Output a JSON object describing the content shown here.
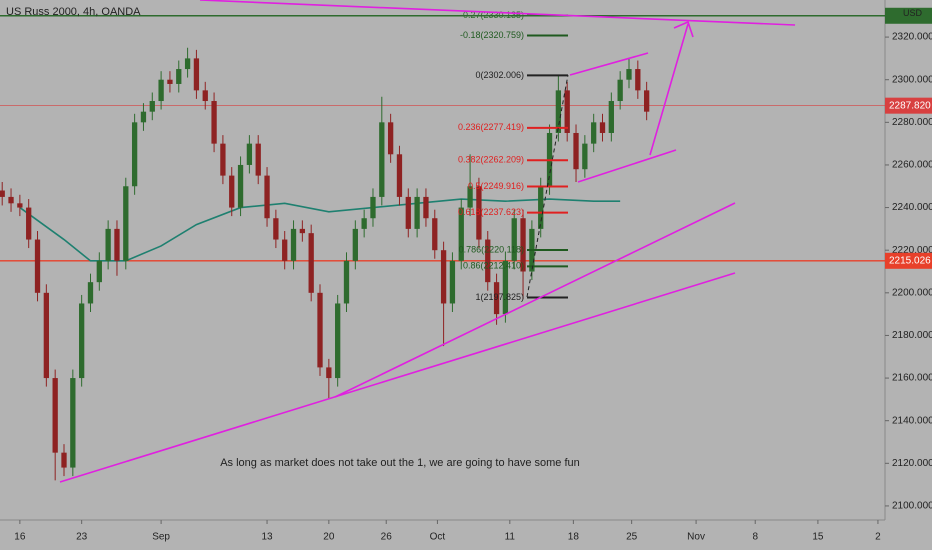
{
  "chart_data": {
    "type": "candlestick",
    "title": "US Russ 2000, 4h, OANDA",
    "annotation": "As long as market does not take out the 1, we are going to have some fun",
    "currency": "USD",
    "up_color": "#2e6b2e",
    "down_color": "#8e2222",
    "xlim": [
      -2.25,
      98
    ],
    "xticks": [
      {
        "value": 0,
        "label": "16"
      },
      {
        "value": 7,
        "label": "23"
      },
      {
        "value": 16,
        "label": "Sep"
      },
      {
        "value": 28,
        "label": "13"
      },
      {
        "value": 35,
        "label": "20"
      },
      {
        "value": 41.5,
        "label": "26"
      },
      {
        "value": 47.3,
        "label": "Oct"
      },
      {
        "value": 55.5,
        "label": "11"
      },
      {
        "value": 62.7,
        "label": "18"
      },
      {
        "value": 69.3,
        "label": "25"
      },
      {
        "value": 76.6,
        "label": "Nov"
      },
      {
        "value": 83.3,
        "label": "8"
      },
      {
        "value": 90.4,
        "label": "15"
      },
      {
        "value": 97.2,
        "label": "2"
      }
    ],
    "ylim": [
      2093.4,
      2337.4
    ],
    "yticks": [
      {
        "value": 2100,
        "label": "2100.000"
      },
      {
        "value": 2120,
        "label": "2120.000"
      },
      {
        "value": 2140,
        "label": "2140.000"
      },
      {
        "value": 2160,
        "label": "2160.000"
      },
      {
        "value": 2180,
        "label": "2180.000"
      },
      {
        "value": 2200,
        "label": "2200.000"
      },
      {
        "value": 2220,
        "label": "2220.000"
      },
      {
        "value": 2240,
        "label": "2240.000"
      },
      {
        "value": 2260,
        "label": "2260.000"
      },
      {
        "value": 2280,
        "label": "2280.000"
      },
      {
        "value": 2300,
        "label": "2300.000"
      },
      {
        "value": 2320,
        "label": "2320.000"
      }
    ],
    "price_lines": [
      {
        "value": 2287.82,
        "label": "2287.820",
        "color": "#d84040"
      },
      {
        "value": 2215.026,
        "label": "2215.026",
        "color": "#e8402a"
      }
    ],
    "top_line": {
      "value": 2330,
      "color": "#2e6b2e"
    },
    "fib_levels": [
      {
        "value": 2330.135,
        "label": "-0.27(2330.135)",
        "color": "#2e6b2e"
      },
      {
        "value": 2320.759,
        "label": "-0.18(2320.759)",
        "color": "#1f5a1f"
      },
      {
        "value": 2302.006,
        "label": "0(2302.006)",
        "color": "#222222"
      },
      {
        "value": 2277.419,
        "label": "0.236(2277.419)",
        "color": "#e02020"
      },
      {
        "value": 2262.209,
        "label": "0.382(2262.209)",
        "color": "#e02020"
      },
      {
        "value": 2249.916,
        "label": "0.5(2249.916)",
        "color": "#e02020"
      },
      {
        "value": 2237.623,
        "label": "0.618(2237.623)",
        "color": "#e02020"
      },
      {
        "value": 2220.118,
        "label": "0.786(2220.118)",
        "color": "#1f5a1f"
      },
      {
        "value": 2212.41,
        "label": "0.86(2212.410)",
        "color": "#1f5a1f"
      },
      {
        "value": 2197.825,
        "label": "1(2197.825)",
        "color": "#222222"
      }
    ],
    "ma": {
      "color": "#1e8070",
      "x": [
        0,
        5,
        8,
        12,
        16,
        20,
        25,
        30,
        35,
        40,
        45,
        50,
        55,
        60,
        65,
        68
      ],
      "values": [
        2240,
        2225,
        2215,
        2215,
        2222,
        2232,
        2240,
        2242,
        2238,
        2240,
        2242,
        2244,
        2243,
        2244,
        2243,
        2243
      ]
    },
    "candles": [
      {
        "x": -2,
        "o": 2248,
        "h": 2252,
        "l": 2241,
        "c": 2245
      },
      {
        "x": -1,
        "o": 2245,
        "h": 2249,
        "l": 2238,
        "c": 2242
      },
      {
        "x": 0,
        "o": 2242,
        "h": 2246,
        "l": 2236,
        "c": 2240
      },
      {
        "x": 1,
        "o": 2240,
        "h": 2244,
        "l": 2221,
        "c": 2225
      },
      {
        "x": 2,
        "o": 2225,
        "h": 2229,
        "l": 2196,
        "c": 2200
      },
      {
        "x": 3,
        "o": 2200,
        "h": 2204,
        "l": 2156,
        "c": 2160
      },
      {
        "x": 4,
        "o": 2160,
        "h": 2164,
        "l": 2112,
        "c": 2125
      },
      {
        "x": 5,
        "o": 2125,
        "h": 2129,
        "l": 2114,
        "c": 2118
      },
      {
        "x": 6,
        "o": 2118,
        "h": 2164,
        "l": 2114,
        "c": 2160
      },
      {
        "x": 7,
        "o": 2160,
        "h": 2199,
        "l": 2156,
        "c": 2195
      },
      {
        "x": 8,
        "o": 2195,
        "h": 2209,
        "l": 2191,
        "c": 2205
      },
      {
        "x": 9,
        "o": 2205,
        "h": 2219,
        "l": 2201,
        "c": 2215
      },
      {
        "x": 10,
        "o": 2215,
        "h": 2234,
        "l": 2211,
        "c": 2230
      },
      {
        "x": 11,
        "o": 2230,
        "h": 2234,
        "l": 2208,
        "c": 2215
      },
      {
        "x": 12,
        "o": 2215,
        "h": 2254,
        "l": 2211,
        "c": 2250
      },
      {
        "x": 13,
        "o": 2250,
        "h": 2284,
        "l": 2246,
        "c": 2280
      },
      {
        "x": 14,
        "o": 2280,
        "h": 2289,
        "l": 2276,
        "c": 2285
      },
      {
        "x": 15,
        "o": 2285,
        "h": 2294,
        "l": 2281,
        "c": 2290
      },
      {
        "x": 16,
        "o": 2290,
        "h": 2304,
        "l": 2286,
        "c": 2300
      },
      {
        "x": 17,
        "o": 2300,
        "h": 2304,
        "l": 2294,
        "c": 2298
      },
      {
        "x": 18,
        "o": 2298,
        "h": 2309,
        "l": 2294,
        "c": 2305
      },
      {
        "x": 19,
        "o": 2305,
        "h": 2315,
        "l": 2301,
        "c": 2310
      },
      {
        "x": 20,
        "o": 2310,
        "h": 2314,
        "l": 2291,
        "c": 2295
      },
      {
        "x": 21,
        "o": 2295,
        "h": 2299,
        "l": 2286,
        "c": 2290
      },
      {
        "x": 22,
        "o": 2290,
        "h": 2294,
        "l": 2266,
        "c": 2270
      },
      {
        "x": 23,
        "o": 2270,
        "h": 2274,
        "l": 2251,
        "c": 2255
      },
      {
        "x": 24,
        "o": 2255,
        "h": 2259,
        "l": 2236,
        "c": 2240
      },
      {
        "x": 25,
        "o": 2240,
        "h": 2264,
        "l": 2236,
        "c": 2260
      },
      {
        "x": 26,
        "o": 2260,
        "h": 2274,
        "l": 2256,
        "c": 2270
      },
      {
        "x": 27,
        "o": 2270,
        "h": 2274,
        "l": 2251,
        "c": 2255
      },
      {
        "x": 28,
        "o": 2255,
        "h": 2259,
        "l": 2231,
        "c": 2235
      },
      {
        "x": 29,
        "o": 2235,
        "h": 2239,
        "l": 2221,
        "c": 2225
      },
      {
        "x": 30,
        "o": 2225,
        "h": 2229,
        "l": 2211,
        "c": 2215
      },
      {
        "x": 31,
        "o": 2215,
        "h": 2234,
        "l": 2211,
        "c": 2230
      },
      {
        "x": 32,
        "o": 2230,
        "h": 2234,
        "l": 2224,
        "c": 2228
      },
      {
        "x": 33,
        "o": 2228,
        "h": 2232,
        "l": 2196,
        "c": 2200
      },
      {
        "x": 34,
        "o": 2200,
        "h": 2204,
        "l": 2161,
        "c": 2165
      },
      {
        "x": 35,
        "o": 2165,
        "h": 2169,
        "l": 2150,
        "c": 2160
      },
      {
        "x": 36,
        "o": 2160,
        "h": 2199,
        "l": 2156,
        "c": 2195
      },
      {
        "x": 37,
        "o": 2195,
        "h": 2219,
        "l": 2191,
        "c": 2215
      },
      {
        "x": 38,
        "o": 2215,
        "h": 2234,
        "l": 2211,
        "c": 2230
      },
      {
        "x": 39,
        "o": 2230,
        "h": 2239,
        "l": 2226,
        "c": 2235
      },
      {
        "x": 40,
        "o": 2235,
        "h": 2249,
        "l": 2231,
        "c": 2245
      },
      {
        "x": 41,
        "o": 2245,
        "h": 2292,
        "l": 2241,
        "c": 2280
      },
      {
        "x": 42,
        "o": 2280,
        "h": 2284,
        "l": 2261,
        "c": 2265
      },
      {
        "x": 43,
        "o": 2265,
        "h": 2269,
        "l": 2241,
        "c": 2245
      },
      {
        "x": 44,
        "o": 2245,
        "h": 2249,
        "l": 2226,
        "c": 2230
      },
      {
        "x": 45,
        "o": 2230,
        "h": 2249,
        "l": 2226,
        "c": 2245
      },
      {
        "x": 46,
        "o": 2245,
        "h": 2249,
        "l": 2231,
        "c": 2235
      },
      {
        "x": 47,
        "o": 2235,
        "h": 2239,
        "l": 2216,
        "c": 2220
      },
      {
        "x": 48,
        "o": 2220,
        "h": 2224,
        "l": 2175,
        "c": 2195
      },
      {
        "x": 49,
        "o": 2195,
        "h": 2219,
        "l": 2191,
        "c": 2215
      },
      {
        "x": 50,
        "o": 2215,
        "h": 2244,
        "l": 2211,
        "c": 2240
      },
      {
        "x": 51,
        "o": 2240,
        "h": 2265,
        "l": 2236,
        "c": 2250
      },
      {
        "x": 52,
        "o": 2250,
        "h": 2254,
        "l": 2221,
        "c": 2225
      },
      {
        "x": 53,
        "o": 2225,
        "h": 2229,
        "l": 2201,
        "c": 2205
      },
      {
        "x": 54,
        "o": 2205,
        "h": 2209,
        "l": 2185,
        "c": 2190
      },
      {
        "x": 55,
        "o": 2190,
        "h": 2219,
        "l": 2186,
        "c": 2215
      },
      {
        "x": 56,
        "o": 2215,
        "h": 2239,
        "l": 2211,
        "c": 2235
      },
      {
        "x": 57,
        "o": 2235,
        "h": 2239,
        "l": 2197,
        "c": 2210
      },
      {
        "x": 58,
        "o": 2210,
        "h": 2234,
        "l": 2206,
        "c": 2230
      },
      {
        "x": 59,
        "o": 2230,
        "h": 2254,
        "l": 2226,
        "c": 2250
      },
      {
        "x": 60,
        "o": 2250,
        "h": 2279,
        "l": 2246,
        "c": 2275
      },
      {
        "x": 61,
        "o": 2275,
        "h": 2302,
        "l": 2271,
        "c": 2295
      },
      {
        "x": 62,
        "o": 2295,
        "h": 2299,
        "l": 2271,
        "c": 2275
      },
      {
        "x": 63,
        "o": 2275,
        "h": 2279,
        "l": 2252,
        "c": 2258
      },
      {
        "x": 64,
        "o": 2258,
        "h": 2274,
        "l": 2254,
        "c": 2270
      },
      {
        "x": 65,
        "o": 2270,
        "h": 2284,
        "l": 2266,
        "c": 2280
      },
      {
        "x": 66,
        "o": 2280,
        "h": 2284,
        "l": 2271,
        "c": 2275
      },
      {
        "x": 67,
        "o": 2275,
        "h": 2294,
        "l": 2271,
        "c": 2290
      },
      {
        "x": 68,
        "o": 2290,
        "h": 2304,
        "l": 2286,
        "c": 2300
      },
      {
        "x": 69,
        "o": 2300,
        "h": 2310,
        "l": 2296,
        "c": 2305
      },
      {
        "x": 70,
        "o": 2305,
        "h": 2309,
        "l": 2291,
        "c": 2295
      },
      {
        "x": 71,
        "o": 2295,
        "h": 2299,
        "l": 2281,
        "c": 2285
      }
    ]
  }
}
